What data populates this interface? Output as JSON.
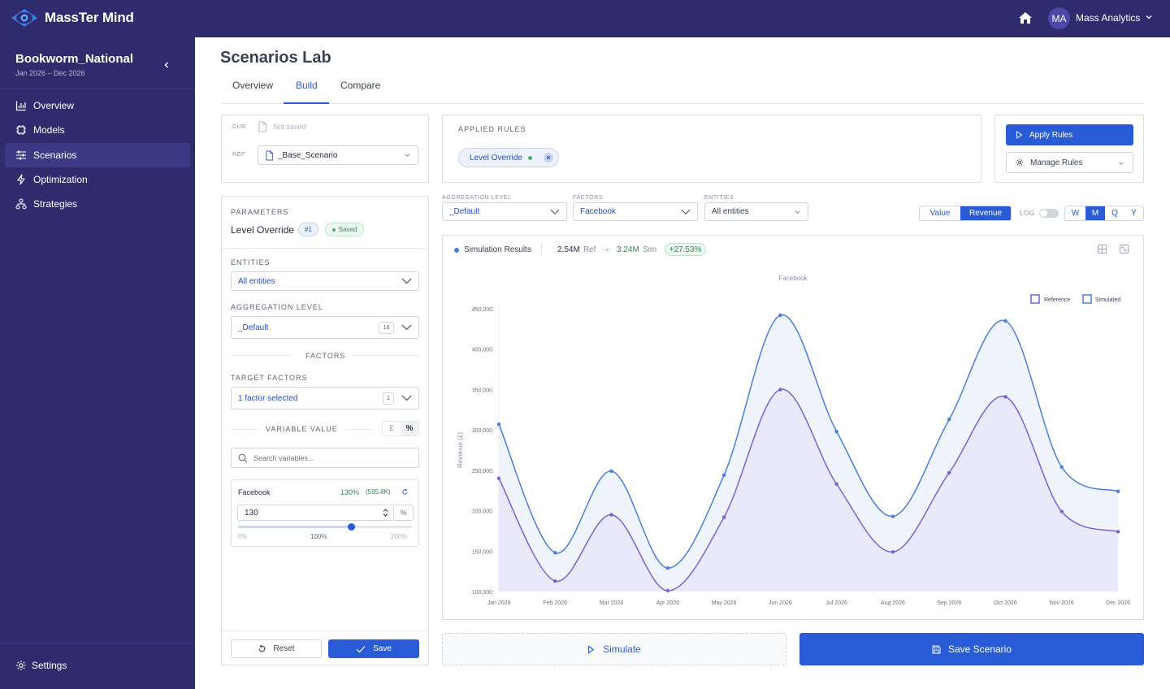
{
  "app": {
    "name": "MassTer Mind",
    "user_initials": "MA",
    "user_name": "Mass Analytics"
  },
  "project": {
    "title": "Bookworm_National",
    "dates": "Jan 2026 – Dec 2026"
  },
  "nav": [
    {
      "label": "Overview",
      "icon": "bar-chart-icon"
    },
    {
      "label": "Models",
      "icon": "chip-icon"
    },
    {
      "label": "Scenarios",
      "icon": "sliders-icon",
      "active": true
    },
    {
      "label": "Optimization",
      "icon": "bolt-icon"
    },
    {
      "label": "Strategies",
      "icon": "hierarchy-icon"
    }
  ],
  "settings_label": "Settings",
  "page": {
    "title": "Scenarios Lab",
    "tabs": [
      "Overview",
      "Build",
      "Compare"
    ],
    "active_tab": "Build"
  },
  "scenario_box": {
    "cur_label": "CUR",
    "cur_value": "Not saved",
    "ref_label": "REF",
    "ref_value": "_Base_Scenario"
  },
  "applied_rules": {
    "title": "APPLIED RULES",
    "chip": "Level Override"
  },
  "rule_actions": {
    "apply": "Apply Rules",
    "manage": "Manage Rules"
  },
  "parameters": {
    "title": "PARAMETERS",
    "name": "Level Override",
    "badge": "#1",
    "status": "Saved",
    "entities_label": "ENTITIES",
    "entities_value": "All entities",
    "agg_label": "AGGREGATION LEVEL",
    "agg_value": "_Default",
    "agg_count": "18",
    "factors_label": "FACTORS",
    "target_label": "TARGET FACTORS",
    "target_value": "1 factor selected",
    "target_count": "1",
    "variable_label": "VARIABLE VALUE",
    "unit_options": [
      "£",
      "%"
    ],
    "unit_selected": "%",
    "search_placeholder": "Search variables...",
    "var": {
      "name": "Facebook",
      "pct": "130%",
      "abs": "(595.8K)",
      "input_value": "130",
      "unit": "%",
      "slider_min": "0%",
      "slider_mid": "100%",
      "slider_max": "200%",
      "slider_value": 0.65
    },
    "reset": "Reset",
    "save": "Save"
  },
  "filters": {
    "agg_label": "AGGREGATION LEVEL",
    "agg_value": "_Default",
    "factors_label": "FACTORS",
    "factors_value": "Facebook",
    "entities_label": "ENTITIES",
    "entities_value": "All entities",
    "metric_options": [
      "Value",
      "Revenue"
    ],
    "metric_selected": "Revenue",
    "log_label": "LOG",
    "period_options": [
      "W",
      "M",
      "Q",
      "Y"
    ],
    "period_selected": "M"
  },
  "results": {
    "title": "Simulation Results",
    "ref_value": "2.54M",
    "ref_label": "Ref",
    "sim_value": "3.24M",
    "sim_label": "Sim",
    "delta": "+27.53%"
  },
  "chart_data": {
    "type": "area",
    "title": "Facebook",
    "xlabel": "",
    "ylabel": "Revenue (£)",
    "categories": [
      "Jan 2026",
      "Feb 2026",
      "Mar 2026",
      "Apr 2026",
      "May 2026",
      "Jun 2026",
      "Jul 2026",
      "Aug 2026",
      "Sep 2026",
      "Oct 2026",
      "Nov 2026",
      "Dec 2026"
    ],
    "y_ticks": [
      "100,000",
      "150,000",
      "200,000",
      "250,000",
      "300,000",
      "350,000",
      "400,000",
      "450,000"
    ],
    "ylim": [
      100000,
      450000
    ],
    "legend_position": "top-right",
    "series": [
      {
        "name": "Reference",
        "color": "#7b61d9",
        "values": [
          240000,
          113000,
          195000,
          101000,
          192000,
          350000,
          233000,
          149000,
          247000,
          341000,
          199000,
          174000
        ]
      },
      {
        "name": "Simulated",
        "color": "#4a7ee0",
        "values": [
          307000,
          148000,
          249000,
          129000,
          244000,
          442000,
          298000,
          193000,
          313000,
          435000,
          254000,
          224000
        ]
      }
    ]
  },
  "bottom": {
    "simulate": "Simulate",
    "save_scenario": "Save Scenario"
  },
  "colors": {
    "sidebar": "#2f2c6e",
    "accent": "#2a5bd7",
    "green": "#2e8b57"
  }
}
